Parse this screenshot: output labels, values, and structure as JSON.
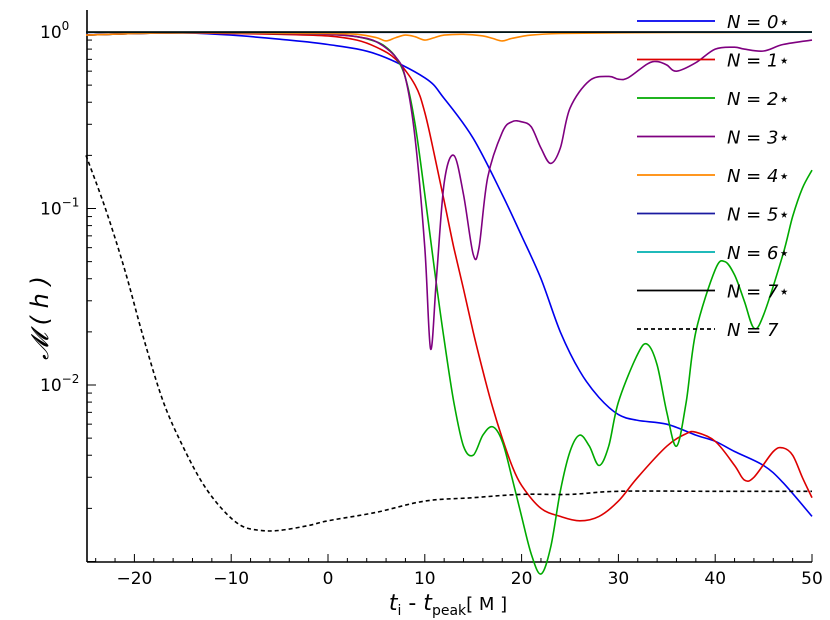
{
  "chart_data": {
    "type": "line",
    "xlabel": {
      "t_i": "t",
      "i_sub": "i",
      "minus": " - ",
      "t_peak": "t",
      "peak_sub": "peak",
      "unit": "[ M ]"
    },
    "ylabel": "𝓜 ( h )",
    "xlim": [
      -25,
      50
    ],
    "ylim_log10": [
      -2.99,
      0.05
    ],
    "y_scale": "log",
    "x_ticks": [
      {
        "v": -20,
        "label": "−20"
      },
      {
        "v": -10,
        "label": "−10"
      },
      {
        "v": 0,
        "label": "0"
      },
      {
        "v": 10,
        "label": "10"
      },
      {
        "v": 20,
        "label": "20"
      },
      {
        "v": 30,
        "label": "30"
      },
      {
        "v": 40,
        "label": "40"
      },
      {
        "v": 50,
        "label": "50"
      }
    ],
    "y_ticks": [
      {
        "exp": 0,
        "label": "10",
        "sup": "0"
      },
      {
        "exp": -1,
        "label": "10",
        "sup": "−1"
      },
      {
        "exp": -2,
        "label": "10",
        "sup": "−2"
      }
    ],
    "legend_position": "top-right",
    "series": [
      {
        "name": "N = 0⋆",
        "color": "#0000ee",
        "dash": false,
        "points": [
          [
            -25,
            0.96
          ],
          [
            -20,
            0.98
          ],
          [
            -15,
            0.99
          ],
          [
            -10,
            0.96
          ],
          [
            -5,
            0.91
          ],
          [
            0,
            0.85
          ],
          [
            5,
            0.75
          ],
          [
            10,
            0.55
          ],
          [
            12,
            0.42
          ],
          [
            15,
            0.25
          ],
          [
            18,
            0.12
          ],
          [
            20,
            0.07
          ],
          [
            22,
            0.04
          ],
          [
            24,
            0.02
          ],
          [
            26,
            0.012
          ],
          [
            28,
            0.0085
          ],
          [
            30,
            0.0068
          ],
          [
            32,
            0.0063
          ],
          [
            35,
            0.006
          ],
          [
            38,
            0.0052
          ],
          [
            40,
            0.0048
          ],
          [
            42,
            0.0042
          ],
          [
            45,
            0.0035
          ],
          [
            47,
            0.0028
          ],
          [
            50,
            0.0018
          ]
        ]
      },
      {
        "name": "N = 1⋆",
        "color": "#dd0000",
        "dash": false,
        "points": [
          [
            -25,
            0.96
          ],
          [
            -20,
            0.98
          ],
          [
            -15,
            0.99
          ],
          [
            -10,
            0.98
          ],
          [
            -5,
            0.97
          ],
          [
            0,
            0.95
          ],
          [
            3,
            0.9
          ],
          [
            5,
            0.82
          ],
          [
            7,
            0.7
          ],
          [
            9,
            0.5
          ],
          [
            10,
            0.35
          ],
          [
            11,
            0.2
          ],
          [
            12,
            0.11
          ],
          [
            13,
            0.06
          ],
          [
            14,
            0.035
          ],
          [
            15,
            0.02
          ],
          [
            16,
            0.012
          ],
          [
            17,
            0.0075
          ],
          [
            18,
            0.005
          ],
          [
            19,
            0.0035
          ],
          [
            20,
            0.0027
          ],
          [
            22,
            0.002
          ],
          [
            24,
            0.0018
          ],
          [
            26,
            0.0017
          ],
          [
            28,
            0.0018
          ],
          [
            30,
            0.0022
          ],
          [
            32,
            0.003
          ],
          [
            35,
            0.0045
          ],
          [
            37,
            0.0053
          ],
          [
            38,
            0.0054
          ],
          [
            40,
            0.0048
          ],
          [
            42,
            0.0035
          ],
          [
            43,
            0.0029
          ],
          [
            44,
            0.003
          ],
          [
            46,
            0.0042
          ],
          [
            47,
            0.0044
          ],
          [
            48,
            0.004
          ],
          [
            49,
            0.003
          ],
          [
            50,
            0.0023
          ]
        ]
      },
      {
        "name": "N = 2⋆",
        "color": "#00aa00",
        "dash": false,
        "points": [
          [
            -25,
            0.96
          ],
          [
            -20,
            0.98
          ],
          [
            -15,
            0.99
          ],
          [
            -10,
            0.99
          ],
          [
            -5,
            0.98
          ],
          [
            0,
            0.97
          ],
          [
            3,
            0.94
          ],
          [
            5,
            0.88
          ],
          [
            6,
            0.82
          ],
          [
            7,
            0.72
          ],
          [
            8,
            0.55
          ],
          [
            9,
            0.3
          ],
          [
            10,
            0.12
          ],
          [
            11,
            0.045
          ],
          [
            12,
            0.018
          ],
          [
            13,
            0.008
          ],
          [
            14,
            0.0045
          ],
          [
            15,
            0.004
          ],
          [
            16,
            0.0052
          ],
          [
            17,
            0.0058
          ],
          [
            18,
            0.0048
          ],
          [
            19,
            0.003
          ],
          [
            20,
            0.0018
          ],
          [
            21,
            0.0011
          ],
          [
            22,
            0.00085
          ],
          [
            23,
            0.0012
          ],
          [
            24,
            0.0025
          ],
          [
            25,
            0.0042
          ],
          [
            26,
            0.0052
          ],
          [
            27,
            0.0045
          ],
          [
            28,
            0.0035
          ],
          [
            29,
            0.0045
          ],
          [
            30,
            0.008
          ],
          [
            32,
            0.015
          ],
          [
            33,
            0.017
          ],
          [
            34,
            0.013
          ],
          [
            35,
            0.007
          ],
          [
            36,
            0.0045
          ],
          [
            37,
            0.008
          ],
          [
            38,
            0.02
          ],
          [
            40,
            0.045
          ],
          [
            41,
            0.05
          ],
          [
            42,
            0.042
          ],
          [
            43,
            0.03
          ],
          [
            44,
            0.021
          ],
          [
            45,
            0.025
          ],
          [
            47,
            0.055
          ],
          [
            48,
            0.09
          ],
          [
            49,
            0.13
          ],
          [
            50,
            0.165
          ]
        ]
      },
      {
        "name": "N = 3⋆",
        "color": "#7f0080",
        "dash": false,
        "points": [
          [
            -25,
            0.96
          ],
          [
            -20,
            0.98
          ],
          [
            -15,
            0.99
          ],
          [
            -10,
            0.99
          ],
          [
            -5,
            0.98
          ],
          [
            0,
            0.97
          ],
          [
            3,
            0.94
          ],
          [
            5,
            0.88
          ],
          [
            7,
            0.72
          ],
          [
            8,
            0.55
          ],
          [
            9,
            0.25
          ],
          [
            10,
            0.06
          ],
          [
            10.6,
            0.016
          ],
          [
            11.2,
            0.04
          ],
          [
            12,
            0.14
          ],
          [
            13,
            0.2
          ],
          [
            14,
            0.12
          ],
          [
            15,
            0.055
          ],
          [
            15.6,
            0.06
          ],
          [
            16.5,
            0.15
          ],
          [
            18,
            0.27
          ],
          [
            19,
            0.31
          ],
          [
            20,
            0.31
          ],
          [
            21,
            0.29
          ],
          [
            22,
            0.22
          ],
          [
            23,
            0.18
          ],
          [
            24,
            0.22
          ],
          [
            25,
            0.37
          ],
          [
            27,
            0.53
          ],
          [
            29,
            0.56
          ],
          [
            30,
            0.54
          ],
          [
            31,
            0.55
          ],
          [
            33,
            0.66
          ],
          [
            34,
            0.68
          ],
          [
            35,
            0.65
          ],
          [
            36,
            0.6
          ],
          [
            38,
            0.67
          ],
          [
            40,
            0.8
          ],
          [
            42,
            0.82
          ],
          [
            43,
            0.8
          ],
          [
            45,
            0.78
          ],
          [
            47,
            0.85
          ],
          [
            50,
            0.9
          ]
        ]
      },
      {
        "name": "N = 4⋆",
        "color": "#ff8800",
        "dash": false,
        "points": [
          [
            -25,
            0.96
          ],
          [
            -20,
            0.98
          ],
          [
            -15,
            0.99
          ],
          [
            -10,
            0.99
          ],
          [
            -5,
            0.985
          ],
          [
            0,
            0.98
          ],
          [
            3,
            0.97
          ],
          [
            5,
            0.93
          ],
          [
            6,
            0.89
          ],
          [
            7,
            0.93
          ],
          [
            8,
            0.96
          ],
          [
            9,
            0.94
          ],
          [
            10,
            0.9
          ],
          [
            11,
            0.93
          ],
          [
            12,
            0.96
          ],
          [
            14,
            0.97
          ],
          [
            16,
            0.95
          ],
          [
            17,
            0.92
          ],
          [
            18,
            0.89
          ],
          [
            19,
            0.92
          ],
          [
            21,
            0.96
          ],
          [
            24,
            0.98
          ],
          [
            30,
            0.99
          ],
          [
            40,
            0.995
          ],
          [
            50,
            0.997
          ]
        ]
      },
      {
        "name": "N = 5⋆",
        "color": "#1a1aa0",
        "dash": false,
        "points": [
          [
            -25,
            0.995
          ],
          [
            50,
            0.998
          ]
        ]
      },
      {
        "name": "N = 6⋆",
        "color": "#00b0b0",
        "dash": false,
        "points": [
          [
            -25,
            0.997
          ],
          [
            50,
            0.999
          ]
        ]
      },
      {
        "name": "N = 7⋆",
        "color": "#000000",
        "dash": false,
        "points": [
          [
            -25,
            0.999
          ],
          [
            50,
            1.0
          ]
        ]
      },
      {
        "name": "N = 7",
        "color": "#000000",
        "dash": true,
        "points": [
          [
            -25,
            0.2
          ],
          [
            -23,
            0.1
          ],
          [
            -21,
            0.045
          ],
          [
            -19,
            0.018
          ],
          [
            -17,
            0.008
          ],
          [
            -15,
            0.0045
          ],
          [
            -13,
            0.0028
          ],
          [
            -11,
            0.002
          ],
          [
            -9,
            0.0016
          ],
          [
            -7,
            0.0015
          ],
          [
            -5,
            0.0015
          ],
          [
            -2,
            0.0016
          ],
          [
            0,
            0.0017
          ],
          [
            5,
            0.0019
          ],
          [
            10,
            0.0022
          ],
          [
            15,
            0.0023
          ],
          [
            20,
            0.0024
          ],
          [
            25,
            0.0024
          ],
          [
            30,
            0.0025
          ],
          [
            40,
            0.0025
          ],
          [
            50,
            0.0025
          ]
        ]
      }
    ]
  }
}
